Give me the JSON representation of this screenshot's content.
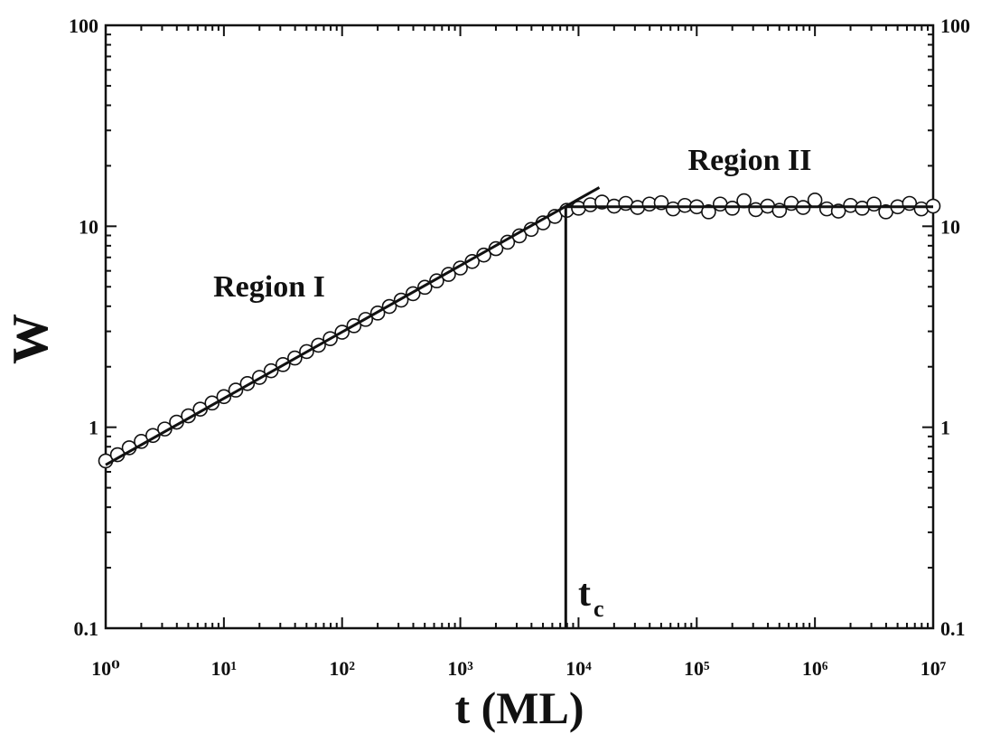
{
  "chart_data": {
    "type": "scatter",
    "x_label": "t (ML)",
    "y_label": "W",
    "xlog": true,
    "ylog": true,
    "minor_ticks": true,
    "right_axis_labels": true,
    "xlim": [
      1,
      10000000
    ],
    "ylim": [
      0.1,
      100
    ],
    "xticks": [
      {
        "value": 1,
        "label": "10⁰"
      },
      {
        "value": 10,
        "label": "10¹"
      },
      {
        "value": 100,
        "label": "10²"
      },
      {
        "value": 1000,
        "label": "10³"
      },
      {
        "value": 10000,
        "label": "10⁴"
      },
      {
        "value": 100000,
        "label": "10⁵"
      },
      {
        "value": 1000000,
        "label": "10⁶"
      },
      {
        "value": 10000000,
        "label": "10⁷"
      }
    ],
    "yticks": [
      0.1,
      1,
      10,
      100
    ],
    "annotations": [
      "Region I",
      "Region II",
      "t",
      "c"
    ],
    "series": [
      {
        "kind": "scatter",
        "color": "#111111",
        "x": [
          1,
          1.26,
          1.58,
          2,
          2.51,
          3.16,
          3.98,
          5.01,
          6.31,
          7.94,
          10,
          12.6,
          15.8,
          20,
          25.1,
          31.6,
          39.8,
          50.1,
          63.1,
          79.4,
          100,
          126,
          158,
          200,
          251,
          316,
          398,
          501,
          631,
          794,
          1000,
          1260,
          1580,
          2000,
          2510,
          3160,
          3980,
          5010,
          6310,
          7940,
          10000,
          12600,
          15800,
          20000,
          25100,
          31600,
          39800,
          50100,
          63100,
          79400,
          100000,
          126000,
          158000,
          200000,
          251000,
          316000,
          398000,
          501000,
          631000,
          794000,
          1000000,
          1260000,
          1580000,
          2000000,
          2510000,
          3160000,
          3980000,
          5010000,
          6310000,
          7940000,
          10000000
        ],
        "values": [
          0.68,
          0.73,
          0.79,
          0.85,
          0.91,
          0.98,
          1.06,
          1.14,
          1.23,
          1.32,
          1.42,
          1.53,
          1.65,
          1.77,
          1.91,
          2.05,
          2.21,
          2.38,
          2.56,
          2.76,
          2.97,
          3.2,
          3.44,
          3.7,
          3.99,
          4.29,
          4.62,
          4.97,
          5.35,
          5.76,
          6.2,
          6.68,
          7.19,
          7.74,
          8.33,
          8.96,
          9.65,
          10.4,
          11.2,
          12,
          12.3,
          12.8,
          13.2,
          12.6,
          13,
          12.4,
          12.9,
          13.1,
          12.2,
          12.7,
          12.5,
          11.8,
          12.9,
          12.3,
          13.4,
          12.1,
          12.6,
          12,
          13,
          12.4,
          13.5,
          12.2,
          11.9,
          12.7,
          12.3,
          12.9,
          11.8,
          12.5,
          13,
          12.2,
          12.6
        ]
      },
      {
        "kind": "line",
        "color": "#111111",
        "x": [
          1,
          15000
        ],
        "values": [
          0.65,
          15.6
        ]
      },
      {
        "kind": "line",
        "color": "#111111",
        "x": [
          7800,
          10000000
        ],
        "values": [
          12.5,
          12.5
        ]
      },
      {
        "kind": "line",
        "color": "#111111",
        "x": [
          7800,
          7800
        ],
        "values": [
          0.1,
          12.5
        ]
      }
    ]
  }
}
